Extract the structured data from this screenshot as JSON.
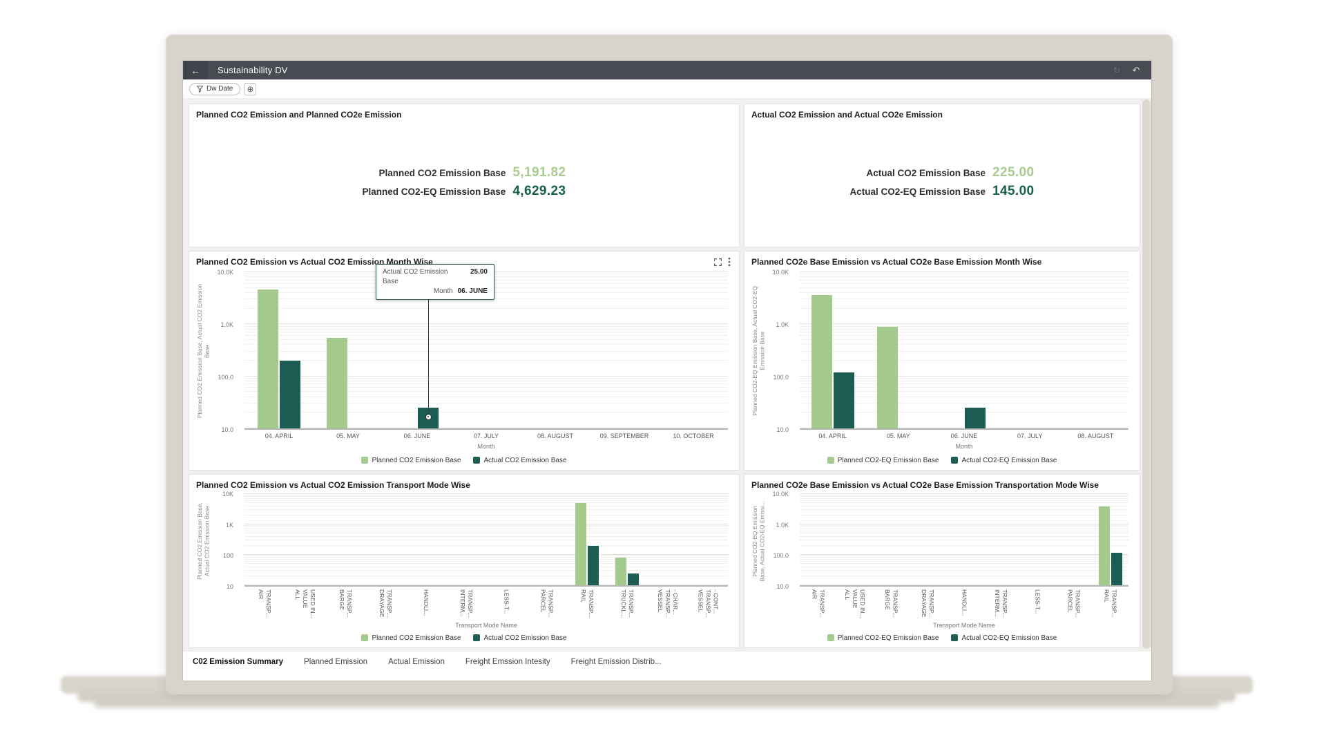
{
  "window": {
    "title": "Sustainability DV"
  },
  "header": {
    "back_glyph": "←",
    "refresh_glyph": "↻",
    "undo_glyph": "↶"
  },
  "filter_bar": {
    "chip_label": "Dw Date",
    "add_glyph": "⊕"
  },
  "colors": {
    "light_green": "#a5ca8d",
    "dark_teal": "#1d5c53",
    "kpi_light": "#a8cb90",
    "kpi_dark": "#17604d",
    "header_bg": "#484c52",
    "canvas_bg": "#f0f0ee"
  },
  "kpi_panels": [
    {
      "title": "Planned CO2 Emission and Planned CO2e Emission",
      "metrics": [
        {
          "label": "Planned CO2 Emission Base",
          "value": "5,191.82"
        },
        {
          "label": "Planned CO2-EQ Emission Base",
          "value": "4,629.23"
        }
      ]
    },
    {
      "title": "Actual CO2 Emission and Actual CO2e Emission",
      "metrics": [
        {
          "label": "Actual CO2 Emission Base",
          "value": "225.00"
        },
        {
          "label": "Actual CO2-EQ Emission Base",
          "value": "145.00"
        }
      ]
    }
  ],
  "chart_data": [
    {
      "type": "bar",
      "scale": "log",
      "title": "Planned CO2 Emission vs Actual CO2 Emission Month Wise",
      "categories": [
        "04. APRIL",
        "05. MAY",
        "06. JUNE",
        "07. JULY",
        "08. AUGUST",
        "09. SEPTEMBER",
        "10. OCTOBER"
      ],
      "series": [
        {
          "name": "Planned CO2 Emission Base",
          "values": [
            4640,
            550,
            null,
            null,
            null,
            null,
            null
          ]
        },
        {
          "name": "Actual CO2 Emission Base",
          "values": [
            200,
            null,
            25,
            null,
            null,
            null,
            null
          ]
        }
      ],
      "ylim": [
        10,
        10000
      ],
      "yticks": [
        "10.0K",
        "1.0K",
        "100.0",
        "10.0"
      ],
      "ylabel": "Planned CO2 Emission Base, Actual CO2 Emission\nBase",
      "xlabel": "Month",
      "grid": true,
      "legend_position": "bottom",
      "tooltip": {
        "label1": "Actual CO2 Emission Base",
        "value1": "25.00",
        "label2": "Month",
        "value2": "06. JUNE",
        "series": 1,
        "category": 2
      }
    },
    {
      "type": "bar",
      "scale": "log",
      "title": "Planned CO2e Base Emission vs Actual CO2e Base Emission Month Wise",
      "categories": [
        "04. APRIL",
        "05. MAY",
        "06. JUNE",
        "07. JULY",
        "08. AUGUST"
      ],
      "series": [
        {
          "name": "Planned CO2-EQ Emission Base",
          "values": [
            3700,
            900,
            null,
            null,
            null
          ]
        },
        {
          "name": "Actual CO2-EQ Emission Base",
          "values": [
            120,
            null,
            25,
            null,
            null
          ]
        }
      ],
      "ylim": [
        10,
        10000
      ],
      "yticks": [
        "10.0K",
        "1.0K",
        "100.0",
        "10.0"
      ],
      "ylabel": "Planned CO2-EQ Emission Base, Actual CO2-EQ\nEmission Base",
      "xlabel": "Month",
      "grid": true,
      "legend_position": "bottom"
    },
    {
      "type": "bar",
      "scale": "log",
      "title": "Planned CO2 Emission vs Actual CO2 Emission Transport Mode Wise",
      "categories": [
        "AIR\nTRANSP...",
        "ALL\nVALUE\nUSED IN...",
        "BARGE\nTRANSP...",
        "DRAYAGE\nTRANSP...",
        "HANDLI...",
        "INTERM...\nTRANSP...",
        "LESS-T...",
        "PARCEL\nTRANSP...",
        "RAIL\nTRANSP...",
        "TRUCKL...\nTRANSP...",
        "VESSEL\nTRANSP...\n- CHAR...",
        "VESSEL\nTRANSP...\n- CONT..."
      ],
      "series": [
        {
          "name": "Planned CO2 Emission Base",
          "values": [
            null,
            null,
            null,
            null,
            null,
            null,
            null,
            null,
            5000,
            80,
            null,
            null
          ]
        },
        {
          "name": "Actual CO2 Emission Base",
          "values": [
            null,
            null,
            null,
            null,
            null,
            null,
            null,
            null,
            200,
            25,
            null,
            null
          ]
        }
      ],
      "ylim": [
        10,
        10000
      ],
      "yticks": [
        "10K",
        "1K",
        "100",
        "10"
      ],
      "ylabel": "Planned CO2 Emission Base,\nActual CO2 Emission Base",
      "xlabel": "Transport Mode Name",
      "grid": true,
      "legend_position": "bottom"
    },
    {
      "type": "bar",
      "scale": "log",
      "title": "Planned CO2e Base Emission vs Actual CO2e Base Emission Transportation Mode Wise",
      "categories": [
        "AIR\nTRANSP...",
        "ALL\nVALUE\nUSED IN...",
        "BARGE\nTRANSP...",
        "DRAYAGE\nTRANSP...",
        "HANDLI...",
        "INTERM...\nTRANSP...",
        "LESS-T...",
        "PARCEL\nTRANSP...",
        "RAIL\nTRANSP..."
      ],
      "series": [
        {
          "name": "Planned CO2-EQ Emission Base",
          "values": [
            null,
            null,
            null,
            null,
            null,
            null,
            null,
            null,
            4000
          ]
        },
        {
          "name": "Actual CO2-EQ Emission Base",
          "values": [
            null,
            null,
            null,
            null,
            null,
            null,
            null,
            null,
            120
          ]
        }
      ],
      "ylim": [
        10,
        10000
      ],
      "yticks": [
        "10.0K",
        "1.0K",
        "100.0",
        "10.0"
      ],
      "ylabel": "Planned CO2-EQ Emission\nBase, Actual CO2-EQ Emissi...",
      "xlabel": "Transport Mode Name",
      "grid": true,
      "legend_position": "bottom"
    }
  ],
  "tabs": [
    {
      "label": "C02 Emission Summary",
      "active": true
    },
    {
      "label": "Planned Emission",
      "active": false
    },
    {
      "label": "Actual Emission",
      "active": false
    },
    {
      "label": "Freight Emssion Intesity",
      "active": false
    },
    {
      "label": "Freight Emission Distrib...",
      "active": false
    }
  ]
}
